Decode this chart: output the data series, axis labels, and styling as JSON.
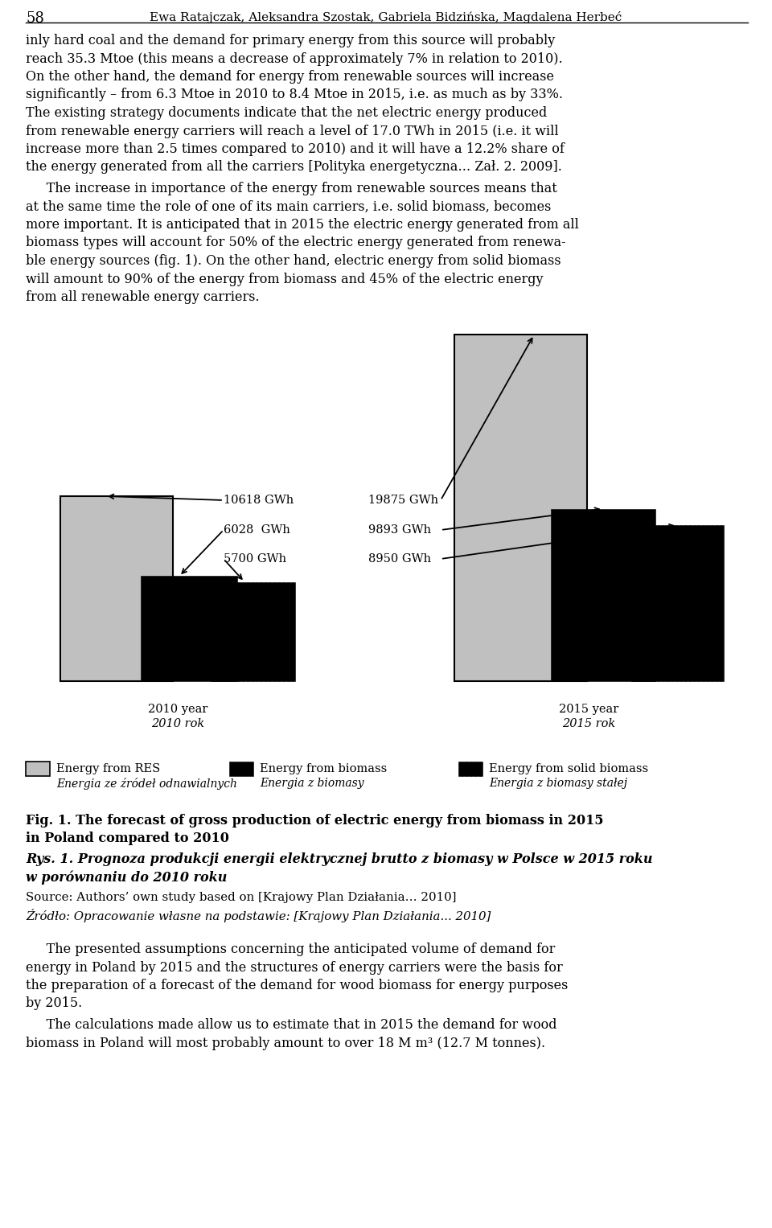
{
  "bg_color": "#ffffff",
  "text_color": "#000000",
  "year_2010": {
    "label_en": "2010 year",
    "label_pl": "2010 rok",
    "RES": 10618,
    "biomass": 6028,
    "solid_biomass": 5700
  },
  "year_2015": {
    "label_en": "2015 year",
    "label_pl": "2015 rok",
    "RES": 19875,
    "biomass": 9893,
    "solid_biomass": 8950
  },
  "anno_2010": [
    "10618 GWh",
    "6028  GWh",
    "5700 GWh"
  ],
  "anno_2015": [
    "19875 GWh",
    "9893 GWh",
    "8950 GWh"
  ],
  "max_val": 21000,
  "para_header": "58",
  "para_authors": "Ewa Ratajczak, Aleksandra Szostak, Gabriela Bidzińska, Magdalena Herbeć",
  "para1_lines": [
    "inly hard coal and the demand for primary energy from this source will probably",
    "reach 35.3 Mtoe (this means a decrease of approximately 7% in relation to 2010).",
    "On the other hand, the demand for energy from renewable sources will increase",
    "significantly – from 6.3 Mtoe in 2010 to 8.4 Mtoe in 2015, i.e. as much as by 33%.",
    "The existing strategy documents indicate that the net electric energy produced",
    "from renewable energy carriers will reach a level of 17.0 TWh in 2015 (i.e. it will",
    "increase more than 2.5 times compared to 2010) and it will have a 12.2% share of",
    "the energy generated from all the carriers [Polityka energetyczna… Zał. 2. 2009]."
  ],
  "para2_lines": [
    "     The increase in importance of the energy from renewable sources means that",
    "at the same time the role of one of its main carriers, i.e. solid biomass, becomes",
    "more important. It is anticipated that in 2015 the electric energy generated from all",
    "biomass types will account for 50% of the electric energy generated from renewa-",
    "ble energy sources (fig. 1). On the other hand, electric energy from solid biomass",
    "will amount to 90% of the energy from biomass and 45% of the electric energy",
    "from all renewable energy carriers."
  ],
  "para3_lines": [
    "     The presented assumptions concerning the anticipated volume of demand for",
    "energy in Poland by 2015 and the structures of energy carriers were the basis for",
    "the preparation of a forecast of the demand for wood biomass for energy purposes",
    "by 2015."
  ],
  "para4_lines": [
    "     The calculations made allow us to estimate that in 2015 the demand for wood",
    "biomass in Poland will most probably amount to over 18 M m³ (12.7 M tonnes)."
  ],
  "fig_caption1": "Fig. 1. The forecast of gross production of electric energy from biomass in 2015",
  "fig_caption2": "in Poland compared to 2010",
  "fig_caption3": "Rys. 1. Prognoza produkcji energii elektrycznej brutto z biomasy w Polsce w 2015 roku",
  "fig_caption4": "w porównaniu do 2010 roku",
  "source1": "Source: Authors’ own study based on [Krajowy Plan Działania… 2010]",
  "source2": "Źródło: Opracowanie własne na podstawie: [Krajowy Plan Działania... 2010]",
  "leg1_en": "Energy from RES",
  "leg1_pl": "Energia ze źródeł odnawialnych",
  "leg2_en": "Energy from biomass",
  "leg2_pl": "Energia z biomasy",
  "leg3_en": "Energy from solid biomass",
  "leg3_pl": "Energia z biomasy stałej",
  "bar_gray": "#c0c0c0",
  "bar_gray_dark": "#a0a0a0"
}
